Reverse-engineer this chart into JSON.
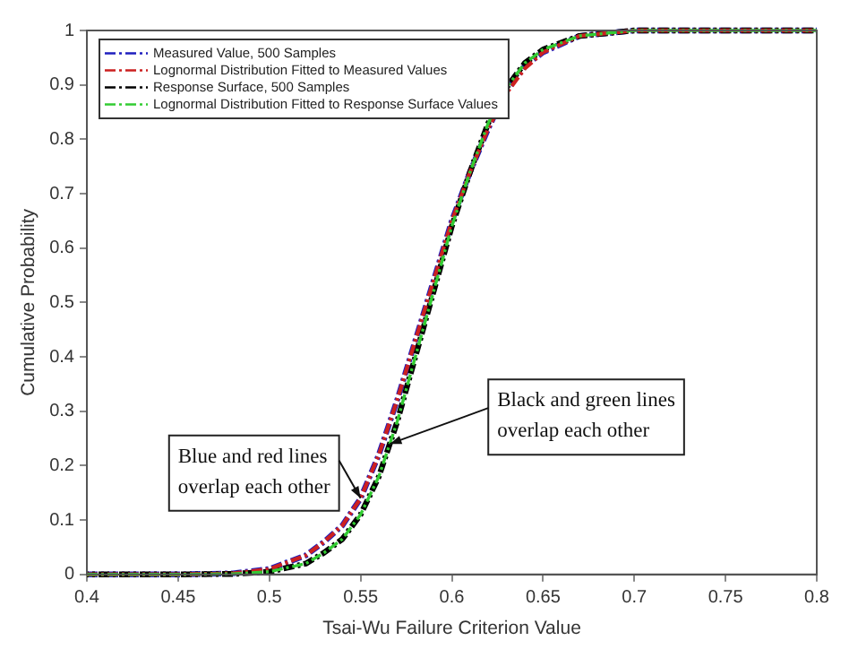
{
  "chart_data": {
    "type": "line",
    "xlabel": "Tsai-Wu Failure Criterion Value",
    "ylabel": "Cumulative Probability",
    "x": [
      0.4,
      0.45,
      0.48,
      0.5,
      0.52,
      0.53,
      0.54,
      0.55,
      0.56,
      0.57,
      0.58,
      0.59,
      0.6,
      0.61,
      0.62,
      0.63,
      0.64,
      0.65,
      0.67,
      0.7,
      0.75,
      0.8
    ],
    "series": [
      {
        "name": "Measured Value, 500 Samples",
        "color": "#1f1fbf",
        "values": [
          0,
          0,
          0.002,
          0.01,
          0.035,
          0.06,
          0.09,
          0.14,
          0.22,
          0.32,
          0.43,
          0.54,
          0.65,
          0.74,
          0.82,
          0.89,
          0.935,
          0.96,
          0.99,
          1,
          1,
          1
        ]
      },
      {
        "name": "Lognormal Distribution Fitted to Measured Values",
        "color": "#cc2020",
        "values": [
          0,
          0,
          0.002,
          0.01,
          0.035,
          0.06,
          0.09,
          0.14,
          0.22,
          0.32,
          0.43,
          0.54,
          0.65,
          0.74,
          0.82,
          0.885,
          0.93,
          0.96,
          0.99,
          1,
          1,
          1
        ]
      },
      {
        "name": "Response Surface, 500 Samples",
        "color": "#000000",
        "values": [
          0,
          0,
          0.001,
          0.005,
          0.02,
          0.04,
          0.065,
          0.11,
          0.18,
          0.28,
          0.4,
          0.52,
          0.64,
          0.74,
          0.83,
          0.895,
          0.94,
          0.965,
          0.99,
          1,
          1,
          1
        ]
      },
      {
        "name": "Lognormal Distribution Fitted to Response Surface Values",
        "color": "#33cc33",
        "values": [
          0,
          0,
          0.001,
          0.005,
          0.02,
          0.04,
          0.065,
          0.11,
          0.18,
          0.28,
          0.4,
          0.52,
          0.64,
          0.74,
          0.83,
          0.895,
          0.94,
          0.965,
          0.99,
          1,
          1,
          1
        ]
      }
    ],
    "xlim": [
      0.4,
      0.8
    ],
    "xticks": [
      0.4,
      0.45,
      0.5,
      0.55,
      0.6,
      0.65,
      0.7,
      0.75,
      0.8
    ],
    "ylim": [
      0,
      1
    ],
    "yticks": [
      0,
      0.1,
      0.2,
      0.3,
      0.4,
      0.5,
      0.6,
      0.7,
      0.8,
      0.9,
      1
    ],
    "grid": false,
    "legend": "top left",
    "line_style": "dashed",
    "marker": "none",
    "annotations": [
      {
        "text": "Blue and red lines overlap each other",
        "x": 0.55,
        "y": 0.14
      },
      {
        "text": "Black and green lines overlap each other",
        "x": 0.566,
        "y": 0.24
      }
    ]
  }
}
